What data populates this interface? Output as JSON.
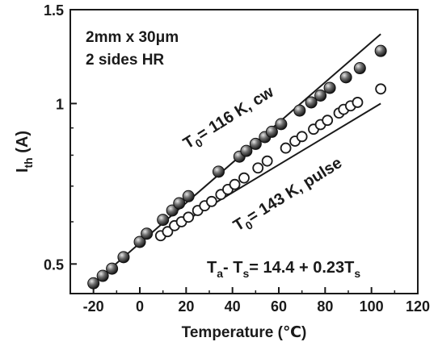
{
  "chart_data": {
    "type": "scatter",
    "x_axis": {
      "label": "Temperature (℃)",
      "range": [
        -30,
        120
      ],
      "ticks": [
        -20,
        0,
        20,
        40,
        60,
        80,
        100,
        120
      ]
    },
    "y_axis": {
      "label_main": "I",
      "label_sub": "th",
      "label_unit": " (A)",
      "scale": "log",
      "range": [
        0.44,
        1.5
      ],
      "ticks": [
        {
          "value": 0.5,
          "label": "0.5"
        },
        {
          "value": 1,
          "label": "1"
        },
        {
          "value": 1.5,
          "label": "1.5"
        }
      ]
    },
    "grid": false,
    "annotations": {
      "device_line1": "2mm x 30μm",
      "device_line2": "2 sides HR",
      "cw_T": "T",
      "cw_sub": "0",
      "cw_rest": "= 116 K, cw",
      "pulse_T": "T",
      "pulse_sub": "0",
      "pulse_rest": "= 143 K, pulse",
      "eq_a_main": "T",
      "eq_a_sub": "a",
      "eq_mid": "- T",
      "eq_s_sub": "s",
      "eq_rest": "= 14.4 + 0.23T",
      "eq_end_sub": "s"
    },
    "series": [
      {
        "marker": "filled-circle",
        "fit": {
          "x": [
            -20,
            104
          ],
          "y": [
            0.46,
            1.35
          ]
        },
        "points": [
          {
            "x": -20,
            "y": 0.46
          },
          {
            "x": -16,
            "y": 0.475
          },
          {
            "x": -12,
            "y": 0.49
          },
          {
            "x": -7,
            "y": 0.515
          },
          {
            "x": 0,
            "y": 0.55
          },
          {
            "x": 3,
            "y": 0.57
          },
          {
            "x": 10,
            "y": 0.605
          },
          {
            "x": 14,
            "y": 0.63
          },
          {
            "x": 17,
            "y": 0.65
          },
          {
            "x": 21,
            "y": 0.67
          },
          {
            "x": 34,
            "y": 0.745
          },
          {
            "x": 43,
            "y": 0.795
          },
          {
            "x": 46,
            "y": 0.815
          },
          {
            "x": 50,
            "y": 0.84
          },
          {
            "x": 54,
            "y": 0.865
          },
          {
            "x": 57,
            "y": 0.885
          },
          {
            "x": 61,
            "y": 0.915
          },
          {
            "x": 69,
            "y": 0.97
          },
          {
            "x": 74,
            "y": 1.005
          },
          {
            "x": 78,
            "y": 1.035
          },
          {
            "x": 82,
            "y": 1.07
          },
          {
            "x": 89,
            "y": 1.12
          },
          {
            "x": 95,
            "y": 1.165
          },
          {
            "x": 104,
            "y": 1.255
          }
        ]
      },
      {
        "marker": "open-circle",
        "fit": {
          "x": [
            9,
            104
          ],
          "y": [
            0.565,
            1.0
          ]
        },
        "points": [
          {
            "x": 9,
            "y": 0.565
          },
          {
            "x": 12,
            "y": 0.575
          },
          {
            "x": 15,
            "y": 0.59
          },
          {
            "x": 18,
            "y": 0.6
          },
          {
            "x": 21,
            "y": 0.612
          },
          {
            "x": 25,
            "y": 0.63
          },
          {
            "x": 28,
            "y": 0.643
          },
          {
            "x": 31,
            "y": 0.655
          },
          {
            "x": 35,
            "y": 0.675
          },
          {
            "x": 38,
            "y": 0.69
          },
          {
            "x": 41,
            "y": 0.705
          },
          {
            "x": 45,
            "y": 0.725
          },
          {
            "x": 51,
            "y": 0.757
          },
          {
            "x": 55,
            "y": 0.78
          },
          {
            "x": 63,
            "y": 0.825
          },
          {
            "x": 67,
            "y": 0.85
          },
          {
            "x": 70,
            "y": 0.867
          },
          {
            "x": 75,
            "y": 0.895
          },
          {
            "x": 78,
            "y": 0.913
          },
          {
            "x": 81,
            "y": 0.93
          },
          {
            "x": 86,
            "y": 0.96
          },
          {
            "x": 88,
            "y": 0.975
          },
          {
            "x": 91,
            "y": 0.99
          },
          {
            "x": 94,
            "y": 1.005
          },
          {
            "x": 104,
            "y": 1.065
          }
        ]
      }
    ]
  }
}
